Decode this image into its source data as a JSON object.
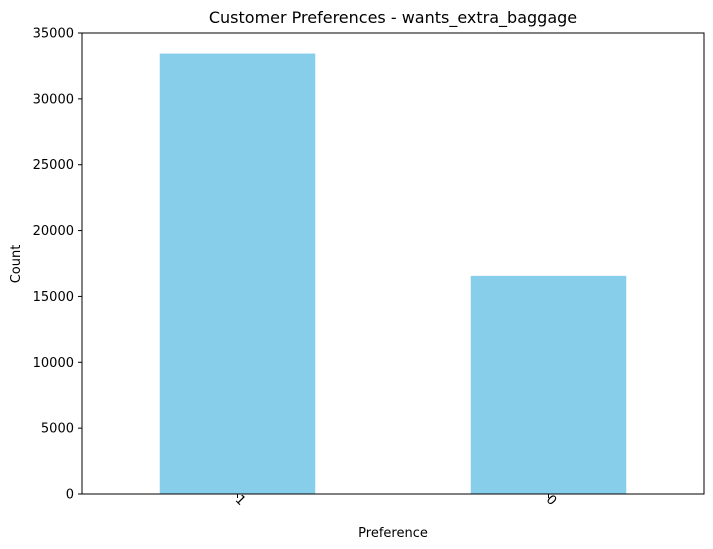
{
  "chart_data": {
    "type": "bar",
    "title": "Customer Preferences - wants_extra_baggage",
    "xlabel": "Preference",
    "ylabel": "Count",
    "categories": [
      "1",
      "0"
    ],
    "values": [
      33439,
      16561
    ],
    "ylim": [
      0,
      35000
    ],
    "yticks": [
      "0",
      "5000",
      "10000",
      "15000",
      "20000",
      "25000",
      "30000",
      "35000"
    ],
    "grid": false,
    "legend": "none",
    "x_tick_rotation": 45,
    "colors": {
      "bar": "#87ceeb",
      "axis": "#000000",
      "background": "#ffffff"
    }
  }
}
